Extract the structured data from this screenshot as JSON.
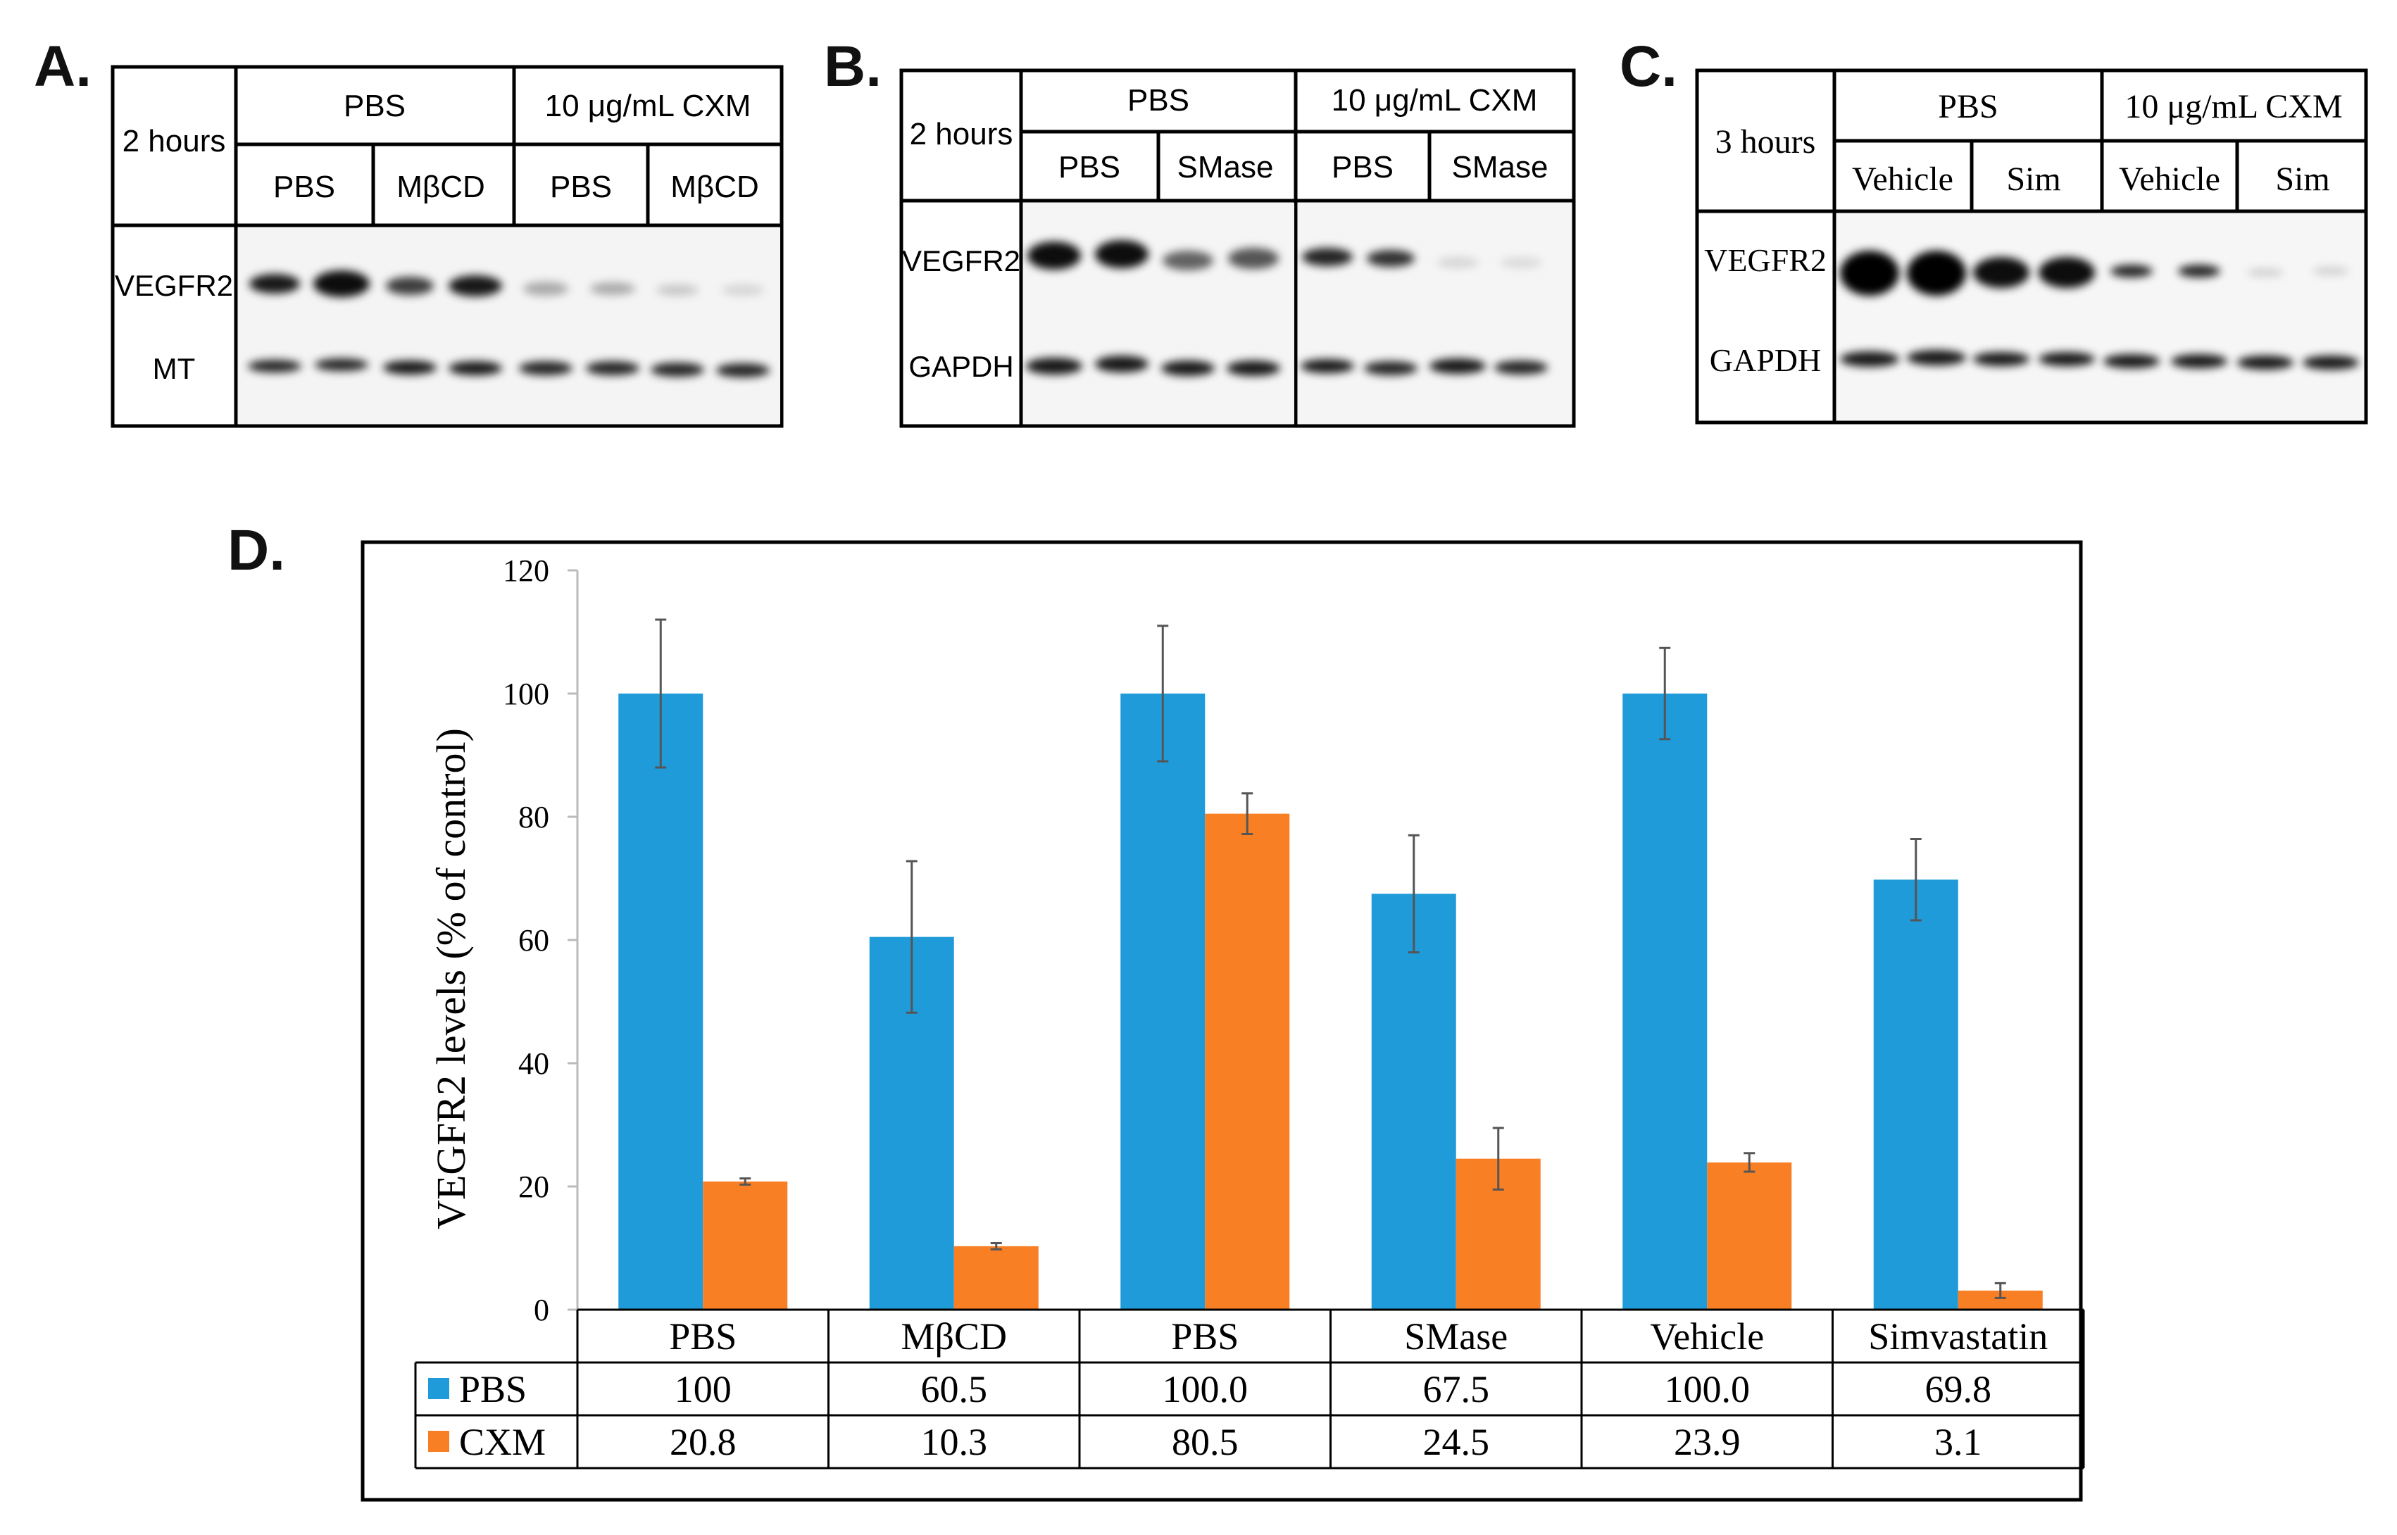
{
  "panel_labels": {
    "a": "A.",
    "b": "B.",
    "c": "C.",
    "d": "D."
  },
  "blot_a": {
    "time": "2 hours",
    "group_left": "PBS",
    "group_right": "10 μg/mL CXM",
    "lanes": [
      "PBS",
      "MβCD",
      "PBS",
      "MβCD"
    ],
    "row1": "VEGFR2",
    "row2": "MT"
  },
  "blot_b": {
    "time": "2 hours",
    "group_left": "PBS",
    "group_right": "10 μg/mL CXM",
    "lanes": [
      "PBS",
      "SMase",
      "PBS",
      "SMase"
    ],
    "row1": "VEGFR2",
    "row2": "GAPDH"
  },
  "blot_c": {
    "time": "3 hours",
    "group_left": "PBS",
    "group_right": "10 μg/mL CXM",
    "lanes": [
      "Vehicle",
      "Sim",
      "Vehicle",
      "Sim"
    ],
    "row1": "VEGFR2",
    "row2": "GAPDH"
  },
  "colors": {
    "pbs": "#1E9BD8",
    "cxm": "#F97F25"
  },
  "chart_data": {
    "type": "bar",
    "title": "",
    "xlabel": "",
    "ylabel": "VEGFR2 levels (% of control)",
    "ylim": [
      0,
      120
    ],
    "yticks": [
      "0",
      "20",
      "40",
      "60",
      "80",
      "100",
      "120"
    ],
    "categories": [
      "PBS",
      "MβCD",
      "PBS",
      "SMase",
      "Vehicle",
      "Simvastatin"
    ],
    "series": [
      {
        "name": "PBS",
        "values": [
          100,
          60.5,
          100,
          67.5,
          100,
          69.8
        ],
        "labels": [
          "100",
          "60.5",
          "100.0",
          "67.5",
          "100.0",
          "69.8"
        ],
        "errors": [
          12,
          12.3,
          11,
          9.5,
          7.4,
          6.6
        ]
      },
      {
        "name": "CXM",
        "values": [
          20.8,
          10.3,
          80.5,
          24.5,
          23.9,
          3.1
        ],
        "labels": [
          "20.8",
          "10.3",
          "80.5",
          "24.5",
          "23.9",
          "3.1"
        ],
        "errors": [
          0.5,
          0.5,
          3.3,
          5,
          1.5,
          1.2
        ]
      }
    ],
    "legend": "data-table"
  }
}
